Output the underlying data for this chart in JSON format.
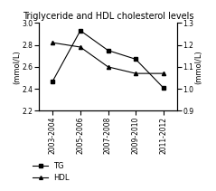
{
  "title": "Triglyceride and HDL cholesterol levels",
  "x_labels": [
    "2003-2004",
    "2005-2006",
    "2007-2008",
    "2009-2010",
    "2011-2012"
  ],
  "tg_values": [
    2.47,
    2.93,
    2.75,
    2.67,
    2.41
  ],
  "hdl_values": [
    1.21,
    1.19,
    1.1,
    1.07,
    1.07
  ],
  "tg_ylim": [
    2.2,
    3.0
  ],
  "hdl_ylim": [
    0.9,
    1.3
  ],
  "tg_ylabel": "(mmol/L)",
  "hdl_ylabel": "(mmol/L)",
  "tg_yticks": [
    2.2,
    2.4,
    2.6,
    2.8,
    3.0
  ],
  "hdl_yticks": [
    0.9,
    1.0,
    1.1,
    1.2,
    1.3
  ],
  "line_color": "black",
  "tg_marker": "s",
  "hdl_marker": "^",
  "legend_tg": "TG",
  "legend_hdl": "HDL",
  "background_color": "#ffffff",
  "fontsize_title": 7,
  "fontsize_labels": 6,
  "fontsize_ticks": 5.5,
  "fontsize_legend": 6
}
